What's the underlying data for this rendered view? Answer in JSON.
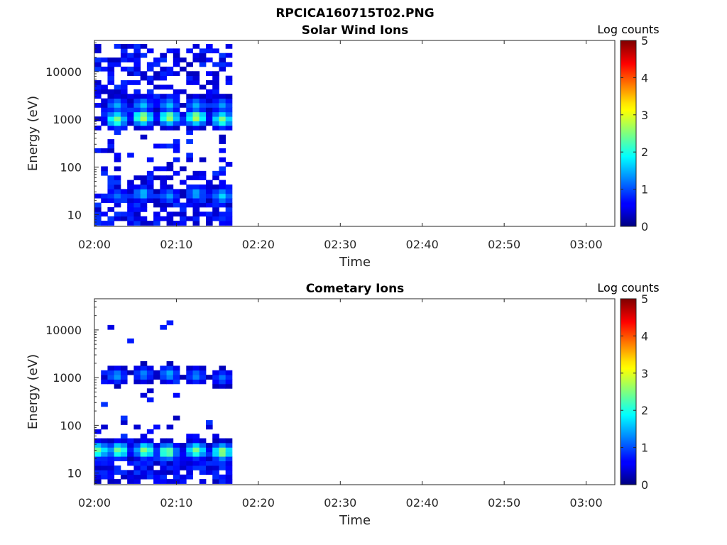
{
  "figure": {
    "title": "RPCICA160715T02.PNG"
  },
  "colorbar": {
    "title": "Log counts",
    "min": 0,
    "max": 5,
    "ticks": [
      "0",
      "1",
      "2",
      "3",
      "4",
      "5"
    ],
    "colormap": "jet"
  },
  "chart_data": [
    {
      "type": "heatmap",
      "title": "Solar Wind Ions",
      "xlabel": "Time",
      "ylabel": "Energy (eV)",
      "x_ticks": [
        "02:00",
        "02:10",
        "02:20",
        "02:30",
        "02:40",
        "02:50",
        "03:00"
      ],
      "x_range_minutes": [
        0,
        63.5
      ],
      "y_ticks": [
        "10",
        "100",
        "1000",
        "10000"
      ],
      "y_scale": "log",
      "y_range": [
        5.7,
        45000
      ],
      "c_range": [
        0,
        5
      ],
      "data_extent_minutes": [
        0,
        17
      ],
      "peaks": [
        {
          "t": 2.7,
          "energy": 1000,
          "log_counts": 2.5
        },
        {
          "t": 5.9,
          "energy": 1100,
          "log_counts": 2.8
        },
        {
          "t": 9.1,
          "energy": 1100,
          "log_counts": 2.7
        },
        {
          "t": 12.4,
          "energy": 1100,
          "log_counts": 2.8
        },
        {
          "t": 15.6,
          "energy": 1000,
          "log_counts": 2.5
        },
        {
          "t": 2.7,
          "energy": 2000,
          "log_counts": 1.5
        },
        {
          "t": 5.9,
          "energy": 2000,
          "log_counts": 1.6
        },
        {
          "t": 9.1,
          "energy": 2000,
          "log_counts": 1.6
        },
        {
          "t": 12.4,
          "energy": 2000,
          "log_counts": 1.5
        },
        {
          "t": 15.6,
          "energy": 2000,
          "log_counts": 1.4
        },
        {
          "t": 2.7,
          "energy": 25,
          "log_counts": 1.2
        },
        {
          "t": 5.9,
          "energy": 28,
          "log_counts": 1.6
        },
        {
          "t": 9.1,
          "energy": 25,
          "log_counts": 1.4
        },
        {
          "t": 12.4,
          "energy": 28,
          "log_counts": 1.5
        },
        {
          "t": 15.6,
          "energy": 25,
          "log_counts": 1.7
        }
      ]
    },
    {
      "type": "heatmap",
      "title": "Cometary Ions",
      "xlabel": "Time",
      "ylabel": "Energy (eV)",
      "x_ticks": [
        "02:00",
        "02:10",
        "02:20",
        "02:30",
        "02:40",
        "02:50",
        "03:00"
      ],
      "x_range_minutes": [
        0,
        63.5
      ],
      "y_ticks": [
        "10",
        "100",
        "1000",
        "10000"
      ],
      "y_scale": "log",
      "y_range": [
        5.7,
        45000
      ],
      "c_range": [
        0,
        5
      ],
      "data_extent_minutes": [
        0,
        17
      ],
      "peaks": [
        {
          "t": 0.5,
          "energy": 30,
          "log_counts": 2.4
        },
        {
          "t": 3.0,
          "energy": 30,
          "log_counts": 2.5
        },
        {
          "t": 6.2,
          "energy": 30,
          "log_counts": 2.6
        },
        {
          "t": 8.9,
          "energy": 28,
          "log_counts": 2.6
        },
        {
          "t": 12.4,
          "energy": 30,
          "log_counts": 2.5
        },
        {
          "t": 15.6,
          "energy": 28,
          "log_counts": 2.7
        },
        {
          "t": 2.7,
          "energy": 1100,
          "log_counts": 1.4
        },
        {
          "t": 6.0,
          "energy": 1200,
          "log_counts": 1.3
        },
        {
          "t": 9.1,
          "energy": 1200,
          "log_counts": 1.5
        },
        {
          "t": 12.4,
          "energy": 1100,
          "log_counts": 1.3
        },
        {
          "t": 15.6,
          "energy": 1000,
          "log_counts": 1.2
        }
      ]
    }
  ]
}
